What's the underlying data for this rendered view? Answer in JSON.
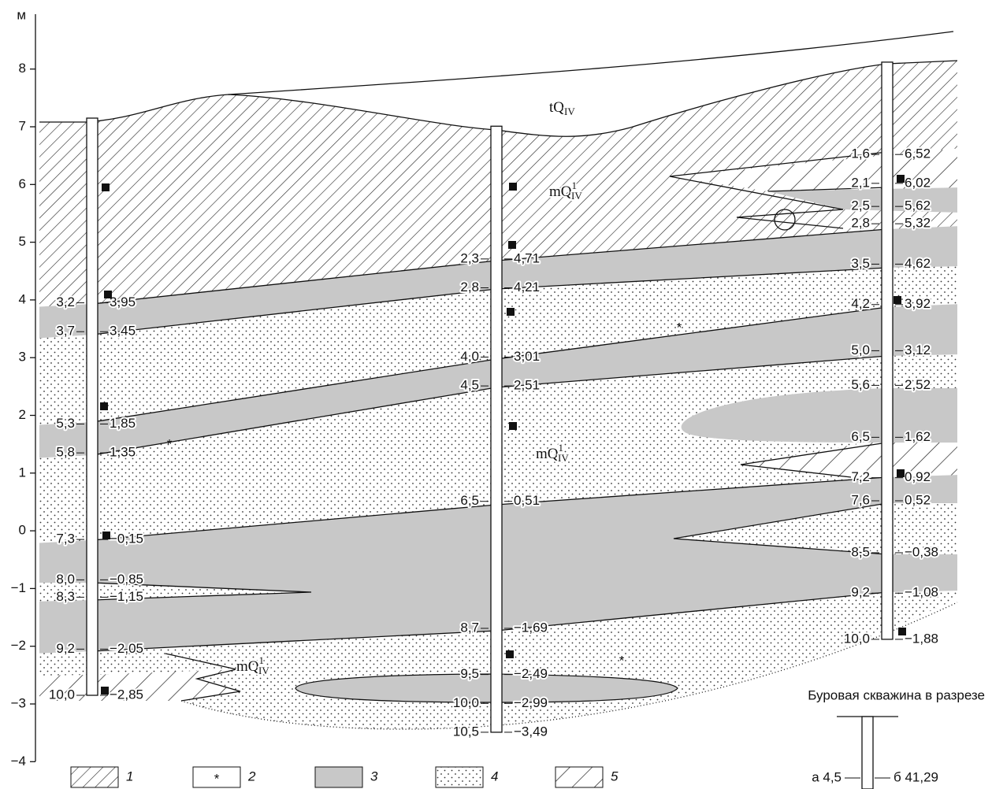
{
  "axis": {
    "unit": "м",
    "ticks": [
      8,
      7,
      6,
      5,
      4,
      3,
      2,
      1,
      0,
      {
        "value": -1,
        "label": "−1"
      },
      {
        "value": -2,
        "label": "−2"
      },
      {
        "value": -3,
        "label": "−3"
      },
      {
        "value": -4,
        "label": "−4"
      }
    ]
  },
  "boreholes": [
    {
      "intervals": [
        {
          "depth": "3,2",
          "elevation": "3,95"
        },
        {
          "depth": "3,7",
          "elevation": "3,45"
        },
        {
          "depth": "5,3",
          "elevation": "1,85"
        },
        {
          "depth": "5,8",
          "elevation": "1,35"
        },
        {
          "depth": "7,3",
          "elevation": "−0,15"
        },
        {
          "depth": "8,0",
          "elevation": "−0,85"
        },
        {
          "depth": "8,3",
          "elevation": "−1,15"
        },
        {
          "depth": "9,2",
          "elevation": "−2,05"
        },
        {
          "depth": "10,0",
          "elevation": "−2,85"
        }
      ]
    },
    {
      "intervals": [
        {
          "depth": "2,3",
          "elevation": "4,71"
        },
        {
          "depth": "2,8",
          "elevation": "4,21"
        },
        {
          "depth": "4,0",
          "elevation": "3,01"
        },
        {
          "depth": "4,5",
          "elevation": "2,51"
        },
        {
          "depth": "6,5",
          "elevation": "0,51"
        },
        {
          "depth": "8,7",
          "elevation": "−1,69"
        },
        {
          "depth": "9,5",
          "elevation": "−2,49"
        },
        {
          "depth": "10,0",
          "elevation": "−2,99"
        },
        {
          "depth": "10,5",
          "elevation": "−3,49"
        }
      ]
    },
    {
      "intervals": [
        {
          "depth": "1,6",
          "elevation": "6,52"
        },
        {
          "depth": "2,1",
          "elevation": "6,02"
        },
        {
          "depth": "2,5",
          "elevation": "5,62"
        },
        {
          "depth": "2,8",
          "elevation": "5,32"
        },
        {
          "depth": "3,5",
          "elevation": "4,62"
        },
        {
          "depth": "4,2",
          "elevation": "3,92"
        },
        {
          "depth": "5,0",
          "elevation": "3,12"
        },
        {
          "depth": "5,6",
          "elevation": "2,52"
        },
        {
          "depth": "6,5",
          "elevation": "1,62"
        },
        {
          "depth": "7,2",
          "elevation": "0,92"
        },
        {
          "depth": "7,6",
          "elevation": "0,52"
        },
        {
          "depth": "8,5",
          "elevation": "−0,38"
        },
        {
          "depth": "9,2",
          "elevation": "−1,08"
        },
        {
          "depth": "10,0",
          "elevation": "−1,88"
        }
      ]
    }
  ],
  "layer_labels": [
    {
      "main": "tQ",
      "sub": "IV"
    },
    {
      "main": "mQ",
      "sup": "1",
      "sub": "IV"
    },
    {
      "main": "mQ",
      "sup": "1",
      "sub": "IV"
    },
    {
      "main": "mQ",
      "sup": "1",
      "sub": "IV"
    }
  ],
  "legend": {
    "items": [
      "1",
      "2",
      "3",
      "4",
      "5"
    ],
    "star": "*"
  },
  "borehole_legend": {
    "title": "Буровая скважина в разрезе",
    "a": "а 4,5",
    "b": "б 41,29"
  }
}
